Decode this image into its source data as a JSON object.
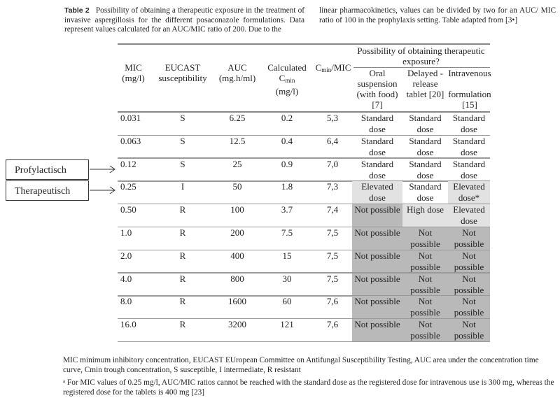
{
  "caption": {
    "label": "Table 2",
    "left": "Possibility of obtaining a therapeutic exposure in the treatment of invasive aspergillosis for the different posaconazole formulations. Data represent values calculated for an AUC/MIC ratio of 200. Due to the",
    "right": "linear pharmacokinetics, values can be divided by two for an AUC/ MIC ratio of 100 in the prophylaxis setting. Table adapted from [3•]"
  },
  "headers": {
    "mic": "MIC (mg/l)",
    "eucast": "EUCAST susceptibility",
    "auc": "AUC (mg.h/ml)",
    "cmin_a": "Calculated C",
    "cmin_sub": "min",
    "cmin_b": "(mg/l)",
    "ratio_a": "C",
    "ratio_sub": "min",
    "ratio_b": "/MIC",
    "group": "Possibility of obtaining therapeutic exposure?",
    "oral": "Oral suspension (with food) [7]",
    "delayed": "Delayed -release tablet [20]",
    "iv_a": "Intravenous",
    "iv_b": "formulation [15]"
  },
  "shades": {
    "elevated": "#e2e2e2",
    "high": "#e2e2e2",
    "not": "#b9b9b9"
  },
  "rows": [
    {
      "mic": "0.031",
      "eucast": "S",
      "auc": "6.25",
      "cmin": "0.2",
      "ratio": "5,3",
      "oral": "Standard dose",
      "delayed": "Standard dose",
      "iv": "Standard dose"
    },
    {
      "mic": "0.063",
      "eucast": "S",
      "auc": "12.5",
      "cmin": "0.4",
      "ratio": "6,4",
      "oral": "Standard dose",
      "delayed": "Standard dose",
      "iv": "Standard dose"
    },
    {
      "mic": "0.12",
      "eucast": "S",
      "auc": "25",
      "cmin": "0.9",
      "ratio": "7,0",
      "oral": "Standard dose",
      "delayed": "Standard dose",
      "iv": "Standard dose"
    },
    {
      "mic": "0.25",
      "eucast": "I",
      "auc": "50",
      "cmin": "1.8",
      "ratio": "7,3",
      "oral": "Elevated dose",
      "delayed": "Standard dose",
      "iv": "Elevated dose*"
    },
    {
      "mic": "0.50",
      "eucast": "R",
      "auc": "100",
      "cmin": "3.7",
      "ratio": "7,4",
      "oral": "Not possible",
      "delayed": "High dose",
      "iv": "Elevated dose"
    },
    {
      "mic": "1.0",
      "eucast": "R",
      "auc": "200",
      "cmin": "7.5",
      "ratio": "7,5",
      "oral": "Not possible",
      "delayed": "Not possible",
      "iv": "Not possible"
    },
    {
      "mic": "2.0",
      "eucast": "R",
      "auc": "400",
      "cmin": "15",
      "ratio": "7,5",
      "oral": "Not possible",
      "delayed": "Not possible",
      "iv": "Not possible"
    },
    {
      "mic": "4.0",
      "eucast": "R",
      "auc": "800",
      "cmin": "30",
      "ratio": "7,5",
      "oral": "Not possible",
      "delayed": "Not possible",
      "iv": "Not possible"
    },
    {
      "mic": "8.0",
      "eucast": "R",
      "auc": "1600",
      "cmin": "60",
      "ratio": "7,6",
      "oral": "Not possible",
      "delayed": "Not possible",
      "iv": "Not possible"
    },
    {
      "mic": "16.0",
      "eucast": "R",
      "auc": "3200",
      "cmin": "121",
      "ratio": "7,6",
      "oral": "Not possible",
      "delayed": "Not possible",
      "iv": "Not possible"
    }
  ],
  "annotations": {
    "prophylactic": "Profylactisch",
    "therapeutic": "Therapeutisch"
  },
  "footnotes": {
    "abbrev": "MIC minimum inhibitory concentration, EUCAST EUropean Committee on Antifungal Susceptibility Testing, AUC area under the concentration time curve, Cmin trough concentration, S susceptible, I intermediate, R resistant",
    "a": "ᵃ For MIC values of 0.25 mg/l, AUC/MIC ratios cannot be reached with the standard dose as the registered dose for intravenous use is 300 mg, whereas the registered dose for the tablets is 400 mg [23]"
  }
}
